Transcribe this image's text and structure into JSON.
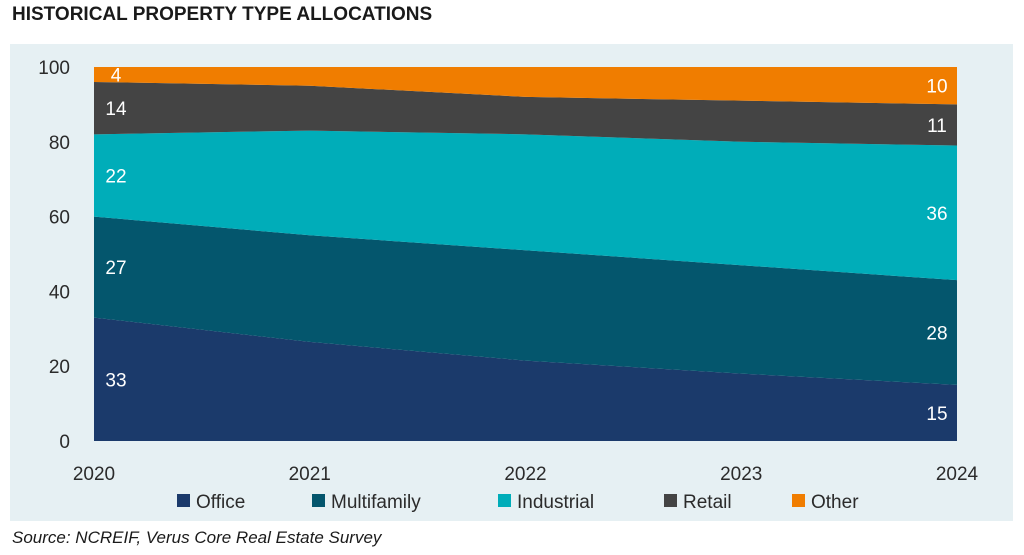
{
  "title": "HISTORICAL PROPERTY TYPE ALLOCATIONS",
  "source": "Source: NCREIF, Verus Core Real Estate Survey",
  "chart_data": {
    "type": "area",
    "stacked": true,
    "x": [
      "2020",
      "2021",
      "2022",
      "2023",
      "2024"
    ],
    "ylim": [
      0,
      100
    ],
    "yticks": [
      "0",
      "20",
      "40",
      "60",
      "80",
      "100"
    ],
    "grid": false,
    "legend_position": "bottom",
    "series": [
      {
        "name": "Office",
        "color": "#1b3a6b",
        "values": [
          33,
          26.5,
          21.5,
          18,
          15
        ],
        "labels": [
          "33",
          "",
          "",
          "",
          "15"
        ]
      },
      {
        "name": "Multifamily",
        "color": "#04566d",
        "values": [
          27,
          28.5,
          29.5,
          29,
          28
        ],
        "labels": [
          "27",
          "",
          "",
          "",
          "28"
        ]
      },
      {
        "name": "Industrial",
        "color": "#00adb9",
        "values": [
          22,
          28,
          31,
          33,
          36
        ],
        "labels": [
          "22",
          "",
          "",
          "",
          "36"
        ]
      },
      {
        "name": "Retail",
        "color": "#444444",
        "values": [
          14,
          12,
          10,
          11,
          11
        ],
        "labels": [
          "14",
          "",
          "",
          "",
          "11"
        ]
      },
      {
        "name": "Other",
        "color": "#f07d00",
        "values": [
          4,
          5,
          8,
          9,
          10
        ],
        "labels": [
          "4",
          "",
          "",
          "",
          "10"
        ]
      }
    ]
  }
}
